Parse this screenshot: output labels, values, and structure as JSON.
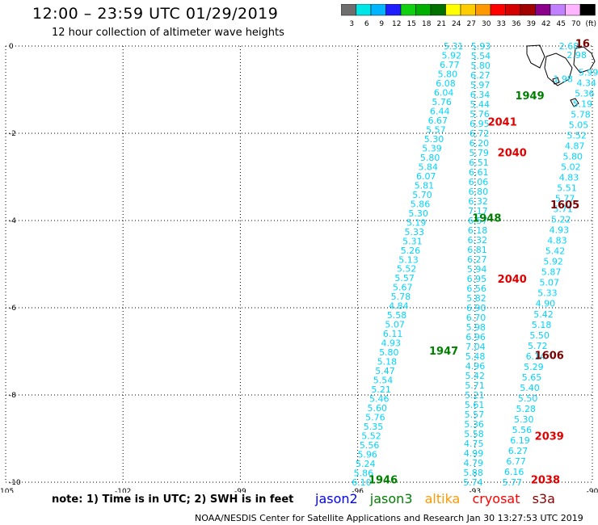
{
  "header": {
    "title": "12:00 – 23:59 UTC 01/29/2019",
    "subtitle": "12 hour collection of altimeter wave heights"
  },
  "colorbar": {
    "labels": [
      "3",
      "6",
      "9",
      "12",
      "15",
      "18",
      "21",
      "24",
      "27",
      "30",
      "33",
      "36",
      "39",
      "42",
      "45",
      "70",
      "(ft)"
    ],
    "colors": [
      "#6e6e6e",
      "#00e5e5",
      "#00b4ff",
      "#1e1eff",
      "#0fd10f",
      "#00b000",
      "#007000",
      "#ffff00",
      "#ffcc00",
      "#ff9900",
      "#ff0000",
      "#d40000",
      "#a00000",
      "#8b008b",
      "#c080ff",
      "#ffb4ff",
      "#000000"
    ]
  },
  "map": {
    "lon_range": [
      -105,
      -90
    ],
    "lat_range": [
      -10,
      0
    ],
    "lon_ticks": [
      -105,
      -102,
      -99,
      -96,
      -93,
      -90
    ],
    "lat_ticks": [
      0,
      -2,
      -4,
      -6,
      -8,
      -10
    ]
  },
  "passes": [
    {
      "id": "1946",
      "color": "#008000",
      "lat": -9.95,
      "lon": -95.35
    },
    {
      "id": "1947",
      "color": "#008000",
      "lat": -7.0,
      "lon": -93.8
    },
    {
      "id": "1948",
      "color": "#008000",
      "lat": -3.95,
      "lon": -92.7
    },
    {
      "id": "1949",
      "color": "#008000",
      "lat": -1.15,
      "lon": -91.6
    },
    {
      "id": "2038",
      "color": "#e00000",
      "lat": -9.95,
      "lon": -91.2
    },
    {
      "id": "2039",
      "color": "#e00000",
      "lat": -8.95,
      "lon": -91.1
    },
    {
      "id": "2040",
      "color": "#e00000",
      "lat": -2.45,
      "lon": -92.05
    },
    {
      "id": "2040",
      "color": "#e00000",
      "lat": -5.35,
      "lon": -92.05
    },
    {
      "id": "2041",
      "color": "#e00000",
      "lat": -1.75,
      "lon": -92.3
    },
    {
      "id": "1605",
      "color": "#7a0000",
      "lat": -3.65,
      "lon": -90.7
    },
    {
      "id": "1606",
      "color": "#7a0000",
      "lat": -7.1,
      "lon": -91.1
    },
    {
      "id": "16",
      "color": "#7a0000",
      "lat": 0.05,
      "lon": -90.25
    }
  ],
  "tracks": [
    {
      "name": "track-1946-1949",
      "color": "#00d5ff",
      "lat_start": -10.0,
      "lon_start": -95.9,
      "lat_end": 0.0,
      "lon_end": -93.55,
      "values": [
        "6.10",
        "5.86",
        "5.24",
        "5.96",
        "5.56",
        "5.52",
        "5.35",
        "5.76",
        "5.60",
        "5.46",
        "5.21",
        "5.54",
        "5.47",
        "5.18",
        "5.80",
        "4.93",
        "6.11",
        "5.07",
        "5.58",
        "4.84",
        "5.78",
        "5.67",
        "5.57",
        "5.52",
        "5.13",
        "5.26",
        "5.31",
        "5.33",
        "5.19",
        "5.30",
        "5.86",
        "5.70",
        "5.81",
        "6.07",
        "5.84",
        "5.80",
        "5.39",
        "5.30",
        "5.57",
        "6.67",
        "6.44",
        "5.76",
        "6.04",
        "6.08",
        "5.80",
        "6.77",
        "5.92",
        "5.31"
      ]
    },
    {
      "name": "track-2038-2041",
      "color": "#00d5ff",
      "lat_start": -10.0,
      "lon_start": -93.05,
      "lat_end": 0.0,
      "lon_end": -92.85,
      "values": [
        "5.74",
        "5.88",
        "4.79",
        "4.99",
        "4.75",
        "5.58",
        "5.36",
        "5.57",
        "5.61",
        "5.21",
        "5.71",
        "5.42",
        "4.96",
        "5.48",
        "7.04",
        "6.96",
        "5.98",
        "6.70",
        "6.90",
        "5.82",
        "6.56",
        "6.95",
        "5.94",
        "6.27",
        "6.81",
        "6.32",
        "6.18",
        "6.57",
        "7.17",
        "6.32",
        "6.80",
        "6.06",
        "6.61",
        "6.51",
        "5.79",
        "6.20",
        "6.72",
        "6.95",
        "5.76",
        "5.44",
        "6.34",
        "5.97",
        "6.27",
        "5.80",
        "5.54",
        "5.93"
      ]
    },
    {
      "name": "track-1605-1606",
      "color": "#00d5ff",
      "lat_start": -10.0,
      "lon_start": -92.05,
      "lat_end": -0.6,
      "lon_end": -90.1,
      "values": [
        "5.77",
        "6.16",
        "6.77",
        "6.27",
        "6.19",
        "5.56",
        "5.30",
        "5.28",
        "5.50",
        "5.40",
        "5.65",
        "5.29",
        "6.14",
        "5.72",
        "5.50",
        "5.18",
        "5.42",
        "4.90",
        "5.33",
        "5.07",
        "5.87",
        "5.92",
        "5.42",
        "4.83",
        "4.93",
        "5.22",
        "5.71",
        "5.77",
        "5.51",
        "4.83",
        "5.02",
        "5.80",
        "4.87",
        "5.52",
        "5.05",
        "5.78",
        "5.19",
        "5.36",
        "4.34",
        "5.99"
      ]
    }
  ],
  "land_labels": [
    {
      "value": "2.68",
      "color": "#808080",
      "lat": 0.0,
      "lon": -90.6
    },
    {
      "value": "2.98",
      "color": "#808080",
      "lat": -0.2,
      "lon": -90.4
    },
    {
      "value": "1.98",
      "color": "#00b000",
      "lat": -0.75,
      "lon": -90.75
    }
  ],
  "note": "note:  1) Time is in UTC;  2) SWH is in feet",
  "legend": [
    {
      "label": "jason2",
      "color": "#0000ff"
    },
    {
      "label": "jason3",
      "color": "#008000"
    },
    {
      "label": "altika",
      "color": "#ff9900"
    },
    {
      "label": "cryosat",
      "color": "#ff0000"
    },
    {
      "label": "s3a",
      "color": "#8b0000"
    }
  ],
  "footer": "NOAA/NESDIS Center for Satellite Applications and Research   Jan 30 13:27:53 UTC 2019"
}
